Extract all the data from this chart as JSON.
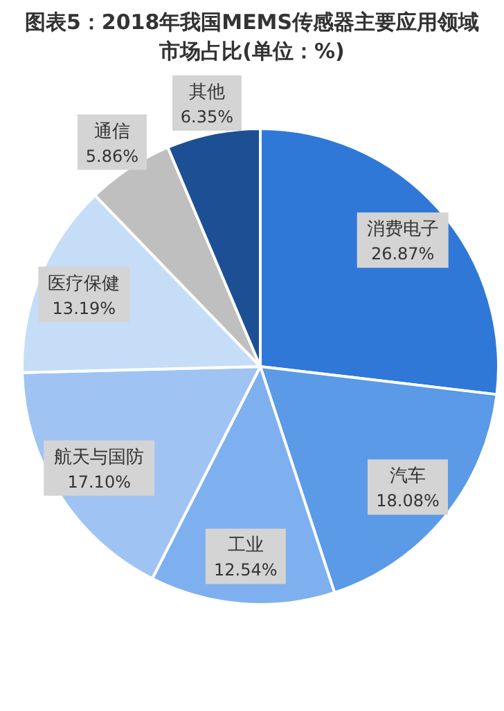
{
  "chart_data": {
    "type": "pie",
    "title": "图表5：2018年我国MEMS传感器主要应用领域市场占比(单位：%)",
    "categories": [
      "消费电子",
      "汽车",
      "工业",
      "航天与国防",
      "医疗保健",
      "通信",
      "其他"
    ],
    "values": [
      26.87,
      18.08,
      12.54,
      17.1,
      13.19,
      5.86,
      6.35
    ],
    "value_labels": [
      "26.87%",
      "18.08%",
      "12.54%",
      "17.10%",
      "13.19%",
      "5.86%",
      "6.35%"
    ],
    "colors": [
      "#2f78d8",
      "#5a9ae6",
      "#7eb0ef",
      "#9fc4f4",
      "#c6ddf8",
      "#bfbfbf",
      "#1d4f94"
    ],
    "legend": false
  }
}
